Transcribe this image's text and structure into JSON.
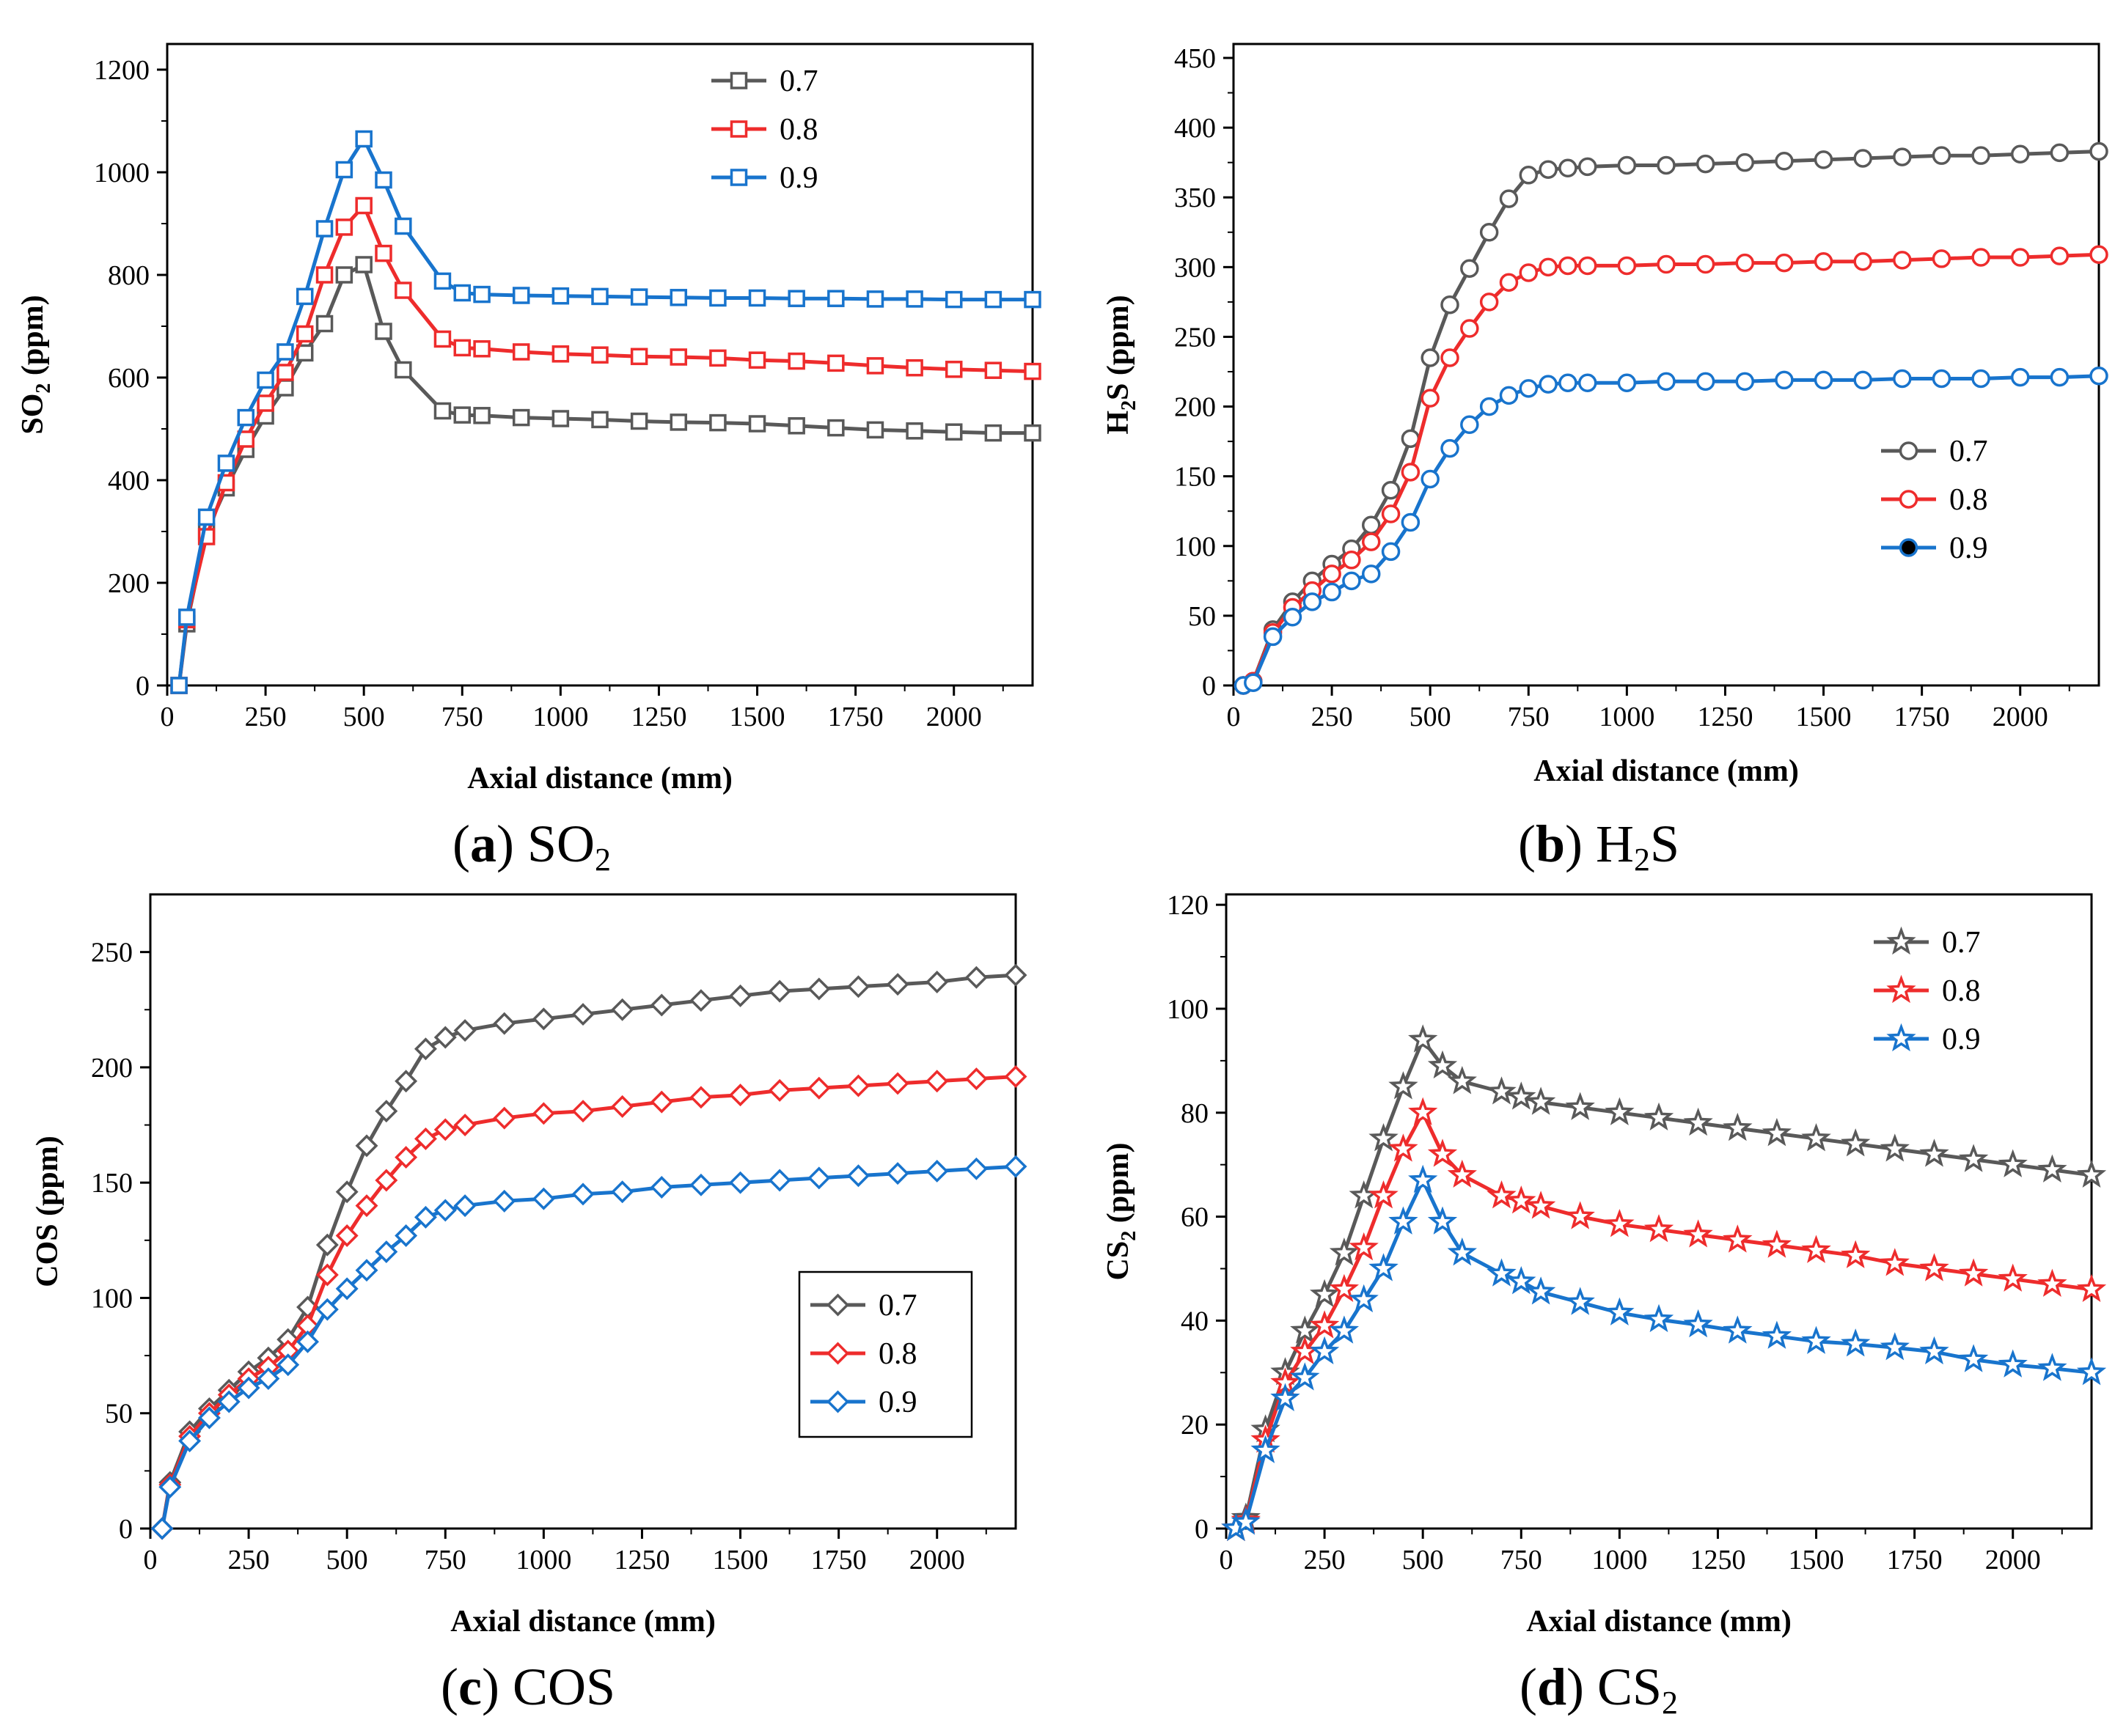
{
  "colors": {
    "s07": "#595959",
    "s08": "#ee2c2c",
    "s09": "#1874cd"
  },
  "chart_data": [
    {
      "id": "a",
      "type": "line",
      "caption": {
        "letter": "a",
        "text": "SO",
        "sub": "2"
      },
      "ylabel": {
        "main": "SO",
        "sub": "2",
        "rest": " (ppm)"
      },
      "xlabel": "Axial distance (mm)",
      "marker": "square",
      "xlim": [
        0,
        2200
      ],
      "ylim": [
        0,
        1250
      ],
      "xticks": [
        0,
        250,
        500,
        750,
        1000,
        1250,
        1500,
        1750,
        2000
      ],
      "yticks": [
        0,
        200,
        400,
        600,
        800,
        1000,
        1200
      ],
      "legend": {
        "position": "top-right",
        "entries": [
          "0.7",
          "0.8",
          "0.9"
        ]
      },
      "series": [
        {
          "name": "0.7",
          "color": "#595959",
          "x": [
            30,
            50,
            100,
            150,
            200,
            250,
            300,
            350,
            400,
            450,
            500,
            550,
            600,
            700,
            750,
            800,
            900,
            1000,
            1100,
            1200,
            1300,
            1400,
            1500,
            1600,
            1700,
            1800,
            1900,
            2000,
            2100,
            2200
          ],
          "y": [
            0,
            120,
            300,
            385,
            460,
            525,
            580,
            648,
            705,
            800,
            820,
            690,
            615,
            535,
            527,
            526,
            522,
            520,
            518,
            515,
            513,
            512,
            510,
            506,
            502,
            498,
            496,
            494,
            492,
            492
          ]
        },
        {
          "name": "0.8",
          "color": "#ee2c2c",
          "x": [
            30,
            50,
            100,
            150,
            200,
            250,
            300,
            350,
            400,
            450,
            500,
            550,
            600,
            700,
            750,
            800,
            900,
            1000,
            1100,
            1200,
            1300,
            1400,
            1500,
            1600,
            1700,
            1800,
            1900,
            2000,
            2100,
            2200
          ],
          "y": [
            0,
            128,
            290,
            395,
            480,
            550,
            610,
            685,
            800,
            893,
            935,
            842,
            770,
            675,
            658,
            656,
            650,
            646,
            644,
            641,
            640,
            638,
            634,
            632,
            628,
            623,
            619,
            616,
            614,
            612
          ]
        },
        {
          "name": "0.9",
          "color": "#1874cd",
          "x": [
            30,
            50,
            100,
            150,
            200,
            250,
            300,
            350,
            400,
            450,
            500,
            550,
            600,
            700,
            750,
            800,
            900,
            1000,
            1100,
            1200,
            1300,
            1400,
            1500,
            1600,
            1700,
            1800,
            1900,
            2000,
            2100,
            2200
          ],
          "y": [
            0,
            133,
            328,
            433,
            522,
            595,
            650,
            758,
            890,
            1005,
            1065,
            985,
            895,
            788,
            765,
            762,
            760,
            759,
            758,
            757,
            756,
            755,
            755,
            754,
            754,
            753,
            753,
            752,
            752,
            752
          ]
        }
      ]
    },
    {
      "id": "b",
      "type": "line",
      "caption": {
        "letter": "b",
        "text": "H",
        "sub": "2",
        "rest": "S"
      },
      "ylabel": {
        "main": "H",
        "sub": "2",
        "rest": "S (ppm)"
      },
      "xlabel": "Axial distance (mm)",
      "marker": "circle",
      "xlim": [
        0,
        2200
      ],
      "ylim": [
        0,
        460
      ],
      "xticks": [
        0,
        250,
        500,
        750,
        1000,
        1250,
        1500,
        1750,
        2000
      ],
      "yticks": [
        0,
        50,
        100,
        150,
        200,
        250,
        300,
        350,
        400,
        450
      ],
      "legend": {
        "position": "center-right",
        "entries": [
          "0.7",
          "0.8",
          "0.9"
        ]
      },
      "series": [
        {
          "name": "0.7",
          "color": "#595959",
          "x": [
            25,
            50,
            100,
            150,
            200,
            250,
            300,
            350,
            400,
            450,
            500,
            550,
            600,
            650,
            700,
            750,
            800,
            850,
            900,
            1000,
            1100,
            1200,
            1300,
            1400,
            1500,
            1600,
            1700,
            1800,
            1900,
            2000,
            2100,
            2200
          ],
          "y": [
            0,
            3,
            40,
            60,
            75,
            87,
            98,
            115,
            140,
            177,
            235,
            273,
            299,
            325,
            349,
            366,
            370,
            371,
            372,
            373,
            373,
            374,
            375,
            376,
            377,
            378,
            379,
            380,
            380,
            381,
            382,
            383
          ]
        },
        {
          "name": "0.8",
          "color": "#ee2c2c",
          "x": [
            25,
            50,
            100,
            150,
            200,
            250,
            300,
            350,
            400,
            450,
            500,
            550,
            600,
            650,
            700,
            750,
            800,
            850,
            900,
            1000,
            1100,
            1200,
            1300,
            1400,
            1500,
            1600,
            1700,
            1800,
            1900,
            2000,
            2100,
            2200
          ],
          "y": [
            0,
            3,
            38,
            56,
            68,
            80,
            90,
            103,
            123,
            153,
            206,
            235,
            256,
            275,
            289,
            296,
            300,
            301,
            301,
            301,
            302,
            302,
            303,
            303,
            304,
            304,
            305,
            306,
            307,
            307,
            308,
            309
          ]
        },
        {
          "name": "0.9",
          "color": "#1874cd",
          "x": [
            25,
            50,
            100,
            150,
            200,
            250,
            300,
            350,
            400,
            450,
            500,
            550,
            600,
            650,
            700,
            750,
            800,
            850,
            900,
            1000,
            1100,
            1200,
            1300,
            1400,
            1500,
            1600,
            1700,
            1800,
            1900,
            2000,
            2100,
            2200
          ],
          "y": [
            0,
            2,
            35,
            49,
            60,
            67,
            75,
            80,
            96,
            117,
            148,
            170,
            187,
            200,
            208,
            213,
            216,
            217,
            217,
            217,
            218,
            218,
            218,
            219,
            219,
            219,
            220,
            220,
            220,
            221,
            221,
            222
          ]
        }
      ]
    },
    {
      "id": "c",
      "type": "line",
      "caption": {
        "letter": "c",
        "text": "COS",
        "sub": ""
      },
      "ylabel": {
        "main": "COS (ppm)",
        "sub": "",
        "rest": ""
      },
      "xlabel": "Axial distance (mm)",
      "marker": "diamond",
      "xlim": [
        0,
        2200
      ],
      "ylim": [
        0,
        275
      ],
      "xticks": [
        0,
        250,
        500,
        750,
        1000,
        1250,
        1500,
        1750,
        2000
      ],
      "yticks": [
        0,
        50,
        100,
        150,
        200,
        250
      ],
      "legend": {
        "position": "bottom-right",
        "entries": [
          "0.7",
          "0.8",
          "0.9"
        ]
      },
      "series": [
        {
          "name": "0.7",
          "color": "#595959",
          "x": [
            30,
            50,
            100,
            150,
            200,
            250,
            300,
            350,
            400,
            450,
            500,
            550,
            600,
            650,
            700,
            750,
            800,
            900,
            1000,
            1100,
            1200,
            1300,
            1400,
            1500,
            1600,
            1700,
            1800,
            1900,
            2000,
            2100,
            2200
          ],
          "y": [
            0,
            20,
            42,
            52,
            60,
            68,
            74,
            82,
            96,
            123,
            146,
            166,
            181,
            194,
            208,
            213,
            216,
            219,
            221,
            223,
            225,
            227,
            229,
            231,
            233,
            234,
            235,
            236,
            237,
            239,
            240
          ]
        },
        {
          "name": "0.8",
          "color": "#ee2c2c",
          "x": [
            30,
            50,
            100,
            150,
            200,
            250,
            300,
            350,
            400,
            450,
            500,
            550,
            600,
            650,
            700,
            750,
            800,
            900,
            1000,
            1100,
            1200,
            1300,
            1400,
            1500,
            1600,
            1700,
            1800,
            1900,
            2000,
            2100,
            2200
          ],
          "y": [
            0,
            19,
            40,
            50,
            58,
            65,
            70,
            77,
            88,
            110,
            127,
            140,
            151,
            161,
            169,
            173,
            175,
            178,
            180,
            181,
            183,
            185,
            187,
            188,
            190,
            191,
            192,
            193,
            194,
            195,
            196
          ]
        },
        {
          "name": "0.9",
          "color": "#1874cd",
          "x": [
            30,
            50,
            100,
            150,
            200,
            250,
            300,
            350,
            400,
            450,
            500,
            550,
            600,
            650,
            700,
            750,
            800,
            900,
            1000,
            1100,
            1200,
            1300,
            1400,
            1500,
            1600,
            1700,
            1800,
            1900,
            2000,
            2100,
            2200
          ],
          "y": [
            0,
            18,
            38,
            48,
            55,
            61,
            65,
            71,
            81,
            95,
            104,
            112,
            120,
            127,
            135,
            138,
            140,
            142,
            143,
            145,
            146,
            148,
            149,
            150,
            151,
            152,
            153,
            154,
            155,
            156,
            157
          ]
        }
      ]
    },
    {
      "id": "d",
      "type": "line",
      "caption": {
        "letter": "d",
        "text": "CS",
        "sub": "2"
      },
      "ylabel": {
        "main": "CS",
        "sub": "2",
        "rest": " (ppm)"
      },
      "xlabel": "Axial distance (mm)",
      "marker": "star",
      "xlim": [
        0,
        2200
      ],
      "ylim": [
        0,
        122
      ],
      "xticks": [
        0,
        250,
        500,
        750,
        1000,
        1250,
        1500,
        1750,
        2000
      ],
      "yticks": [
        0,
        20,
        40,
        60,
        80,
        100,
        120
      ],
      "legend": {
        "position": "top-right",
        "entries": [
          "0.7",
          "0.8",
          "0.9"
        ]
      },
      "series": [
        {
          "name": "0.7",
          "color": "#595959",
          "x": [
            25,
            50,
            100,
            150,
            200,
            250,
            300,
            350,
            400,
            450,
            500,
            550,
            600,
            700,
            750,
            800,
            900,
            1000,
            1100,
            1200,
            1300,
            1400,
            1500,
            1600,
            1700,
            1800,
            1900,
            2000,
            2100,
            2200
          ],
          "y": [
            0,
            2,
            19,
            30,
            38,
            45,
            53,
            64,
            75,
            85,
            94,
            89,
            86,
            84,
            83,
            82,
            81,
            80,
            79,
            78,
            77,
            76,
            75,
            74,
            73,
            72,
            71,
            70,
            69,
            68
          ]
        },
        {
          "name": "0.8",
          "color": "#ee2c2c",
          "x": [
            25,
            50,
            100,
            150,
            200,
            250,
            300,
            350,
            400,
            450,
            500,
            550,
            600,
            700,
            750,
            800,
            900,
            1000,
            1100,
            1200,
            1300,
            1400,
            1500,
            1600,
            1700,
            1800,
            1900,
            2000,
            2100,
            2200
          ],
          "y": [
            0,
            1.5,
            17,
            28,
            34,
            39,
            46,
            54,
            64,
            73,
            80,
            72,
            68,
            64,
            63,
            62,
            60,
            58.5,
            57.5,
            56.5,
            55.5,
            54.5,
            53.5,
            52.5,
            51,
            50,
            49,
            48,
            47,
            46
          ]
        },
        {
          "name": "0.9",
          "color": "#1874cd",
          "x": [
            25,
            50,
            100,
            150,
            200,
            250,
            300,
            350,
            400,
            450,
            500,
            550,
            600,
            700,
            750,
            800,
            900,
            1000,
            1100,
            1200,
            1300,
            1400,
            1500,
            1600,
            1700,
            1800,
            1900,
            2000,
            2100,
            2200
          ],
          "y": [
            0,
            1.2,
            15,
            25,
            29,
            34,
            38,
            44,
            50,
            59,
            67,
            59,
            53,
            49,
            47.5,
            45.5,
            43.5,
            41.5,
            40.2,
            39.2,
            38,
            37,
            36,
            35.5,
            34.8,
            34,
            32.5,
            31.5,
            30.8,
            30
          ]
        }
      ]
    }
  ]
}
